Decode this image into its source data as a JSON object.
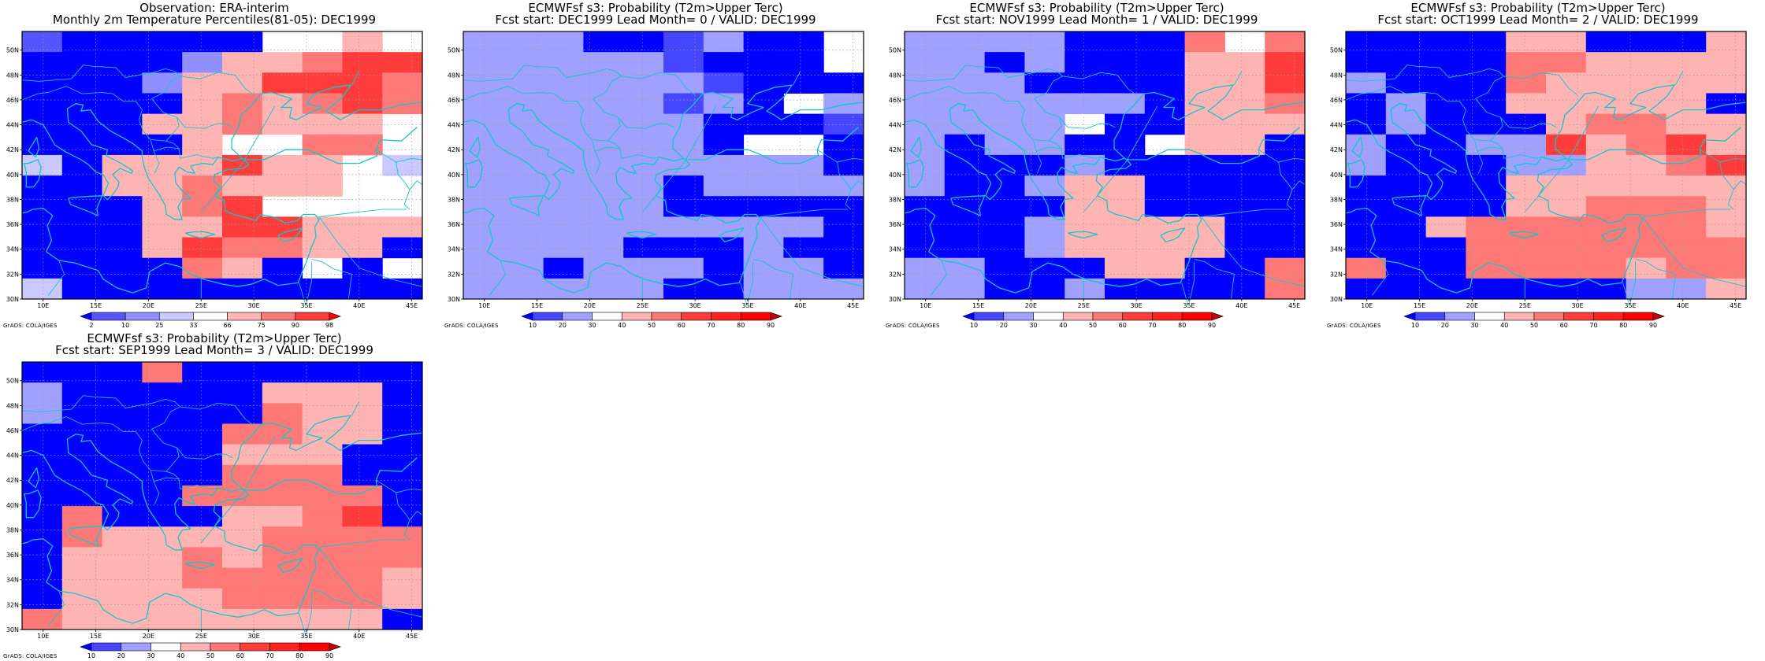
{
  "panels": [
    {
      "title1": "Observation: ERA-interim",
      "title2": "Monthly 2m Temperature Percentiles(81-05): DEC1999",
      "credit": "GrADS: COLA/IGES",
      "colorbar": {
        "labels": [
          "2",
          "10",
          "25",
          "33",
          "66",
          "75",
          "90",
          "98"
        ],
        "colors": [
          "#0000ff",
          "#5555ff",
          "#8f8fff",
          "#c9c9ff",
          "#ffffff",
          "#ffb4b4",
          "#ff7878",
          "#ff3c3c",
          "#ff0000"
        ]
      },
      "grid": [
        "1000004454",
        "0000255677",
        "0002557776",
        "0000565676",
        "0005565554",
        "0000544664",
        "3055575543",
        "0055655544",
        "0005674444",
        "0005577555",
        "0005766550",
        "0000650404",
        "3000000000"
      ]
    },
    {
      "title1": "ECMWFsf s3: Probability (T2m>Upper Terc)",
      "title2": "Fcst start: DEC1999   Lead Month= 0 / VALID: DEC1999",
      "credit": "GrADS: COLA/IGES",
      "colorbar": {
        "labels": [
          "10",
          "20",
          "30",
          "40",
          "50",
          "60",
          "70",
          "80",
          "90"
        ],
        "colors": [
          "#0000ff",
          "#4646ff",
          "#a0a0ff",
          "#ffffff",
          "#ffb4b4",
          "#ff7878",
          "#ff3c3c",
          "#ff2020",
          "#ff0000",
          "#c80000"
        ]
      },
      "grid": [
        "2220012003",
        "2222210003",
        "2222221000",
        "2222212032",
        "2222220001",
        "2222220330",
        "2222222220",
        "2222202222",
        "2222200000",
        "2222222220",
        "2222000200",
        "2202220220",
        "2222200222"
      ]
    },
    {
      "title1": "ECMWFsf s3: Probability (T2m>Upper Terc)",
      "title2": "Fcst start: NOV1999   Lead Month= 1 / VALID: DEC1999",
      "credit": "GrADS: COLA/IGES",
      "colorbar": {
        "labels": [
          "10",
          "20",
          "30",
          "40",
          "50",
          "60",
          "70",
          "80",
          "90"
        ],
        "colors": [
          "#0000ff",
          "#4646ff",
          "#a0a0ff",
          "#ffffff",
          "#ffb4b4",
          "#ff7878",
          "#ff3c3c",
          "#ff2020",
          "#ff0000",
          "#c80000"
        ]
      },
      "grid": [
        "2222000535",
        "2202000446",
        "2220000446",
        "2222220445",
        "2222300444",
        "2022003440",
        "2000200000",
        "2002440000",
        "0000440000",
        "0002444400",
        "0002444400",
        "2200044005",
        "2200200005"
      ]
    },
    {
      "title1": "ECMWFsf s3: Probability (T2m>Upper Terc)",
      "title2": "Fcst start: OCT1999   Lead Month= 2 / VALID: DEC1999",
      "credit": "GrADS: COLA/IGES",
      "colorbar": {
        "labels": [
          "10",
          "20",
          "30",
          "40",
          "50",
          "60",
          "70",
          "80",
          "90"
        ],
        "colors": [
          "#0000ff",
          "#4646ff",
          "#a0a0ff",
          "#ffffff",
          "#ffb4b4",
          "#ff7878",
          "#ff3c3c",
          "#ff2020",
          "#ff0000",
          "#c80000"
        ]
      },
      "grid": [
        "0000440004",
        "0000554444",
        "2000544444",
        "0200444440",
        "0200045544",
        "2002264564",
        "2000224456",
        "0000444444",
        "0000445554",
        "0045555554",
        "0005555555",
        "5005555455",
        "0000000224"
      ]
    },
    {
      "title1": "ECMWFsf s3: Probability (T2m>Upper Terc)",
      "title2": "Fcst start: SEP1999   Lead Month= 3 / VALID: DEC1999",
      "credit": "GrADS: COLA/IGES",
      "colorbar": {
        "labels": [
          "10",
          "20",
          "30",
          "40",
          "50",
          "60",
          "70",
          "80",
          "90"
        ],
        "colors": [
          "#0000ff",
          "#4646ff",
          "#a0a0ff",
          "#ffffff",
          "#ffb4b4",
          "#ff7878",
          "#ff3c3c",
          "#ff2020",
          "#ff0000",
          "#c80000"
        ]
      },
      "grid": [
        "0005000000",
        "2000004440",
        "2000005440",
        "0000055440",
        "0000044400",
        "0000055500",
        "0000555550",
        "0500044560",
        "0544445555",
        "0444545555",
        "0444555554",
        "0444455554",
        "5444444440"
      ]
    }
  ],
  "map": {
    "x_ticks": [
      "10E",
      "15E",
      "20E",
      "25E",
      "30E",
      "35E",
      "40E",
      "45E"
    ],
    "y_ticks": [
      "30N",
      "32N",
      "34N",
      "36N",
      "38N",
      "40N",
      "42N",
      "44N",
      "46N",
      "48N",
      "50N"
    ]
  }
}
